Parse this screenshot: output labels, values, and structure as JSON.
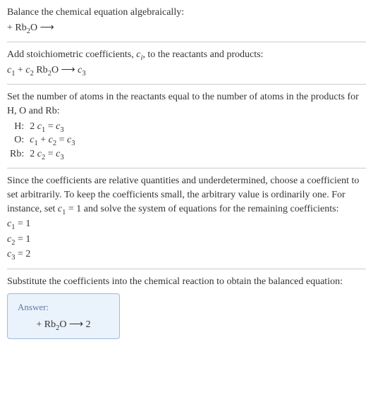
{
  "intro": {
    "line1": "Balance the chemical equation algebraically:",
    "reaction_left": " + Rb",
    "reaction_sub": "2",
    "reaction_right": "O ⟶"
  },
  "stoich": {
    "text": "Add stoichiometric coefficients, ",
    "coef": "c",
    "coef_sub": "i",
    "text2": ", to the reactants and products:",
    "eq_c1": "c",
    "eq_c1_sub": "1",
    "eq_plus": " + ",
    "eq_c2": "c",
    "eq_c2_sub": "2",
    "eq_rb": " Rb",
    "eq_rb_sub": "2",
    "eq_o": "O ⟶ ",
    "eq_c3": "c",
    "eq_c3_sub": "3"
  },
  "atoms": {
    "text": "Set the number of atoms in the reactants equal to the number of atoms in the products for H, O and Rb:",
    "rows": {
      "H": {
        "label": "H:",
        "lhs1": "2 ",
        "c1": "c",
        "c1s": "1",
        "eq": " = ",
        "c3": "c",
        "c3s": "3"
      },
      "O": {
        "label": "O:",
        "c1": "c",
        "c1s": "1",
        "plus": " + ",
        "c2": "c",
        "c2s": "2",
        "eq": " = ",
        "c3": "c",
        "c3s": "3"
      },
      "Rb": {
        "label": "Rb:",
        "lhs1": "2 ",
        "c2": "c",
        "c2s": "2",
        "eq": " = ",
        "c3": "c",
        "c3s": "3"
      }
    }
  },
  "solve": {
    "text1": "Since the coefficients are relative quantities and underdetermined, choose a coefficient to set arbitrarily. To keep the coefficients small, the arbitrary value is ordinarily one. For instance, set ",
    "c1": "c",
    "c1s": "1",
    "text2": " = 1 and solve the system of equations for the remaining coefficients:",
    "r1a": "c",
    "r1as": "1",
    "r1b": " = 1",
    "r2a": "c",
    "r2as": "2",
    "r2b": " = 1",
    "r3a": "c",
    "r3as": "3",
    "r3b": " = 2"
  },
  "subst": {
    "text": "Substitute the coefficients into the chemical reaction to obtain the balanced equation:"
  },
  "answer": {
    "label": "Answer:",
    "eq_left": " + Rb",
    "eq_sub": "2",
    "eq_right": "O ⟶ 2"
  },
  "colors": {
    "text": "#333333",
    "sep": "#cccccc",
    "box_border": "#9bbce0",
    "box_bg": "#eaf2fb",
    "answer_label": "#5a7ca8"
  }
}
